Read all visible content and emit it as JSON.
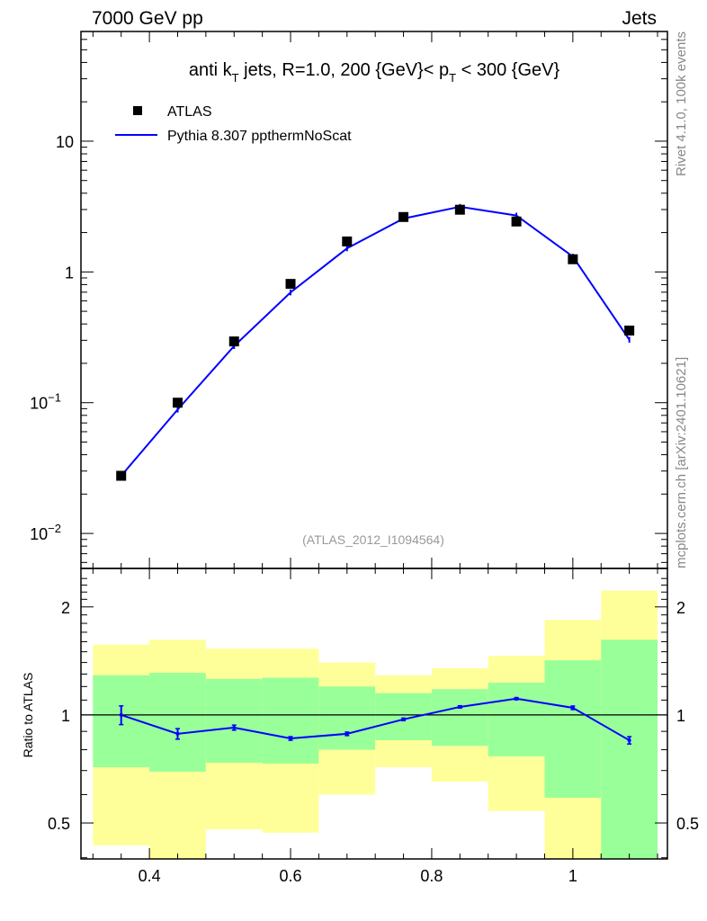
{
  "header": {
    "left": "7000 GeV pp",
    "right": "Jets"
  },
  "side_labels": {
    "top": "Rivet 4.1.0,  100k events",
    "bottom": "mcplots.cern.ch [arXiv:2401.10621]"
  },
  "colors": {
    "mc": "#0000ff",
    "data": "#000000",
    "band_total": "#ffff99",
    "band_stat": "#99ff99"
  },
  "chart_data": [
    {
      "type": "scatter",
      "panel": "main",
      "title": "anti k_T jets, R=1.0,  200 {GeV}< p_T < 300 {GeV}",
      "title_parts": {
        "a": "anti k",
        "a_sub": "T",
        "b": " jets, R=1.0,  200 {GeV}< p",
        "b_sub": "T",
        "c": " < 300 {GeV}"
      },
      "watermark": "(ATLAS_2012_I1094564)",
      "yscale": "log",
      "xlim": [
        0.303,
        1.134
      ],
      "ylim": [
        0.0054,
        69
      ],
      "yticks": [
        {
          "v": 0.01,
          "base": "10",
          "exp": "−2"
        },
        {
          "v": 0.1,
          "base": "10",
          "exp": "−1"
        },
        {
          "v": 1,
          "label": "1"
        },
        {
          "v": 10,
          "label": "10"
        }
      ],
      "legend": {
        "placement": "top-left",
        "entries": [
          "ATLAS",
          "Pythia 8.307 ppthermNoScat"
        ]
      },
      "x": [
        0.36,
        0.44,
        0.52,
        0.6,
        0.68,
        0.76,
        0.84,
        0.92,
        1.0,
        1.08
      ],
      "series": [
        {
          "name": "ATLAS",
          "values": [
            0.0276,
            0.1,
            0.294,
            0.81,
            1.71,
            2.63,
            2.99,
            2.43,
            1.25,
            0.356
          ]
        },
        {
          "name": "Pythia 8.307 ppthermNoScat",
          "values": [
            0.0276,
            0.0886,
            0.271,
            0.697,
            1.515,
            2.56,
            3.15,
            2.7,
            1.31,
            0.303
          ]
        }
      ]
    },
    {
      "type": "line",
      "panel": "ratio",
      "ylabel": "Ratio to ATLAS",
      "yscale": "log",
      "xlim": [
        0.303,
        1.134
      ],
      "ylim": [
        0.397,
        2.56
      ],
      "xticks": [
        0.4,
        0.6,
        0.8,
        1.0
      ],
      "xtick_labels": [
        "0.4",
        "0.6",
        "0.8",
        "1"
      ],
      "yticks": [
        0.5,
        1,
        2
      ],
      "ytick_labels": [
        "0.5",
        "1",
        "2"
      ],
      "bin_edges": [
        0.32,
        0.4,
        0.48,
        0.56,
        0.64,
        0.72,
        0.8,
        0.88,
        0.96,
        1.04,
        1.12
      ],
      "band_total": {
        "upper": [
          1.57,
          1.62,
          1.53,
          1.53,
          1.4,
          1.29,
          1.35,
          1.46,
          1.84,
          2.22
        ],
        "lower": [
          0.433,
          0.39,
          0.48,
          0.47,
          0.6,
          0.715,
          0.652,
          0.54,
          0.39,
          0.39
        ]
      },
      "band_stat": {
        "upper": [
          1.29,
          1.31,
          1.26,
          1.27,
          1.2,
          1.15,
          1.18,
          1.23,
          1.42,
          1.62
        ],
        "lower": [
          0.715,
          0.695,
          0.736,
          0.732,
          0.8,
          0.85,
          0.82,
          0.767,
          0.588,
          0.39
        ]
      },
      "x": [
        0.36,
        0.44,
        0.52,
        0.6,
        0.68,
        0.76,
        0.84,
        0.92,
        1.0,
        1.08
      ],
      "series": [
        {
          "name": "Pythia 8.307 ppthermNoScat",
          "values": [
            1.0,
            0.886,
            0.922,
            0.86,
            0.886,
            0.972,
            1.053,
            1.11,
            1.047,
            0.85
          ],
          "errors": [
            0.06,
            0.03,
            0.015,
            0.01,
            0.01,
            0.008,
            0.008,
            0.008,
            0.012,
            0.02
          ]
        }
      ]
    }
  ]
}
